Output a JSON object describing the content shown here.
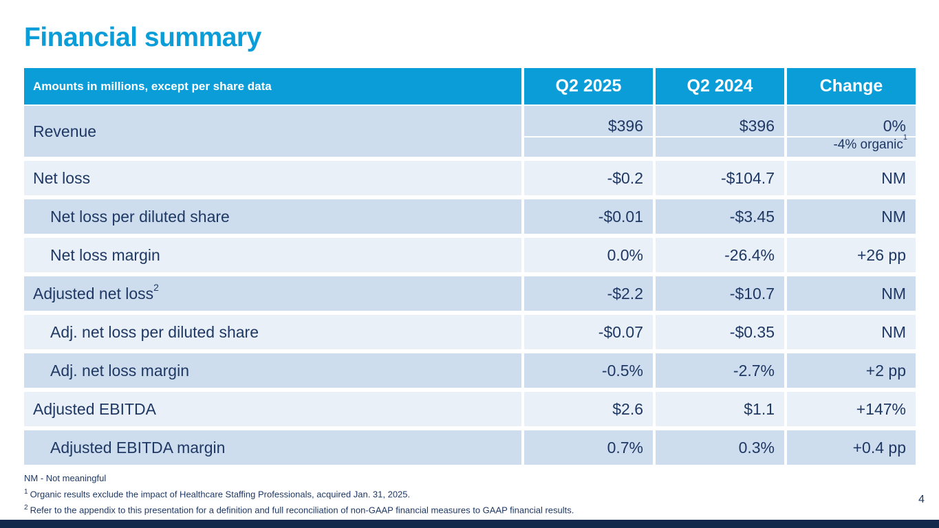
{
  "slide": {
    "title": "Financial summary",
    "page_number": "4"
  },
  "colors": {
    "accent_blue": "#0a9dd8",
    "row_dark": "#cdddee",
    "row_light": "#e9f0f8",
    "text_navy": "#1f3864",
    "footer_bar_navy": "#13294b",
    "header_text": "#ffffff"
  },
  "table": {
    "header": {
      "label": "Amounts in millions, except per share data",
      "columns": [
        "Q2 2025",
        "Q2 2024",
        "Change"
      ]
    },
    "rows": [
      {
        "label": "Revenue",
        "q2_2025": "$396",
        "q2_2024": "$396",
        "change": "0%",
        "change_note": "-4% organic",
        "change_note_sup": "1"
      },
      {
        "label": "Net loss",
        "q2_2025": "-$0.2",
        "q2_2024": "-$104.7",
        "change": "NM"
      },
      {
        "label": "Net loss per diluted share",
        "q2_2025": "-$0.01",
        "q2_2024": "-$3.45",
        "change": "NM"
      },
      {
        "label": "Net loss margin",
        "q2_2025": "0.0%",
        "q2_2024": "-26.4%",
        "change": "+26 pp"
      },
      {
        "label": "Adjusted net loss",
        "label_sup": "2",
        "q2_2025": "-$2.2",
        "q2_2024": "-$10.7",
        "change": "NM"
      },
      {
        "label": "Adj. net loss per diluted share",
        "q2_2025": "-$0.07",
        "q2_2024": "-$0.35",
        "change": "NM"
      },
      {
        "label": "Adj. net loss margin",
        "q2_2025": "-0.5%",
        "q2_2024": "-2.7%",
        "change": "+2 pp"
      },
      {
        "label": "Adjusted EBITDA",
        "q2_2025": "$2.6",
        "q2_2024": "$1.1",
        "change": "+147%"
      },
      {
        "label": "Adjusted EBITDA margin",
        "q2_2025": "0.7%",
        "q2_2024": "0.3%",
        "change": "+0.4 pp"
      }
    ]
  },
  "footnotes": [
    {
      "text": "NM - Not meaningful"
    },
    {
      "sup": "1",
      "text": "Organic results exclude the impact of Healthcare Staffing Professionals, acquired Jan. 31, 2025."
    },
    {
      "sup": "2",
      "text": "Refer to the appendix to this presentation for a definition and full reconciliation of non-GAAP financial measures to GAAP financial results."
    }
  ]
}
